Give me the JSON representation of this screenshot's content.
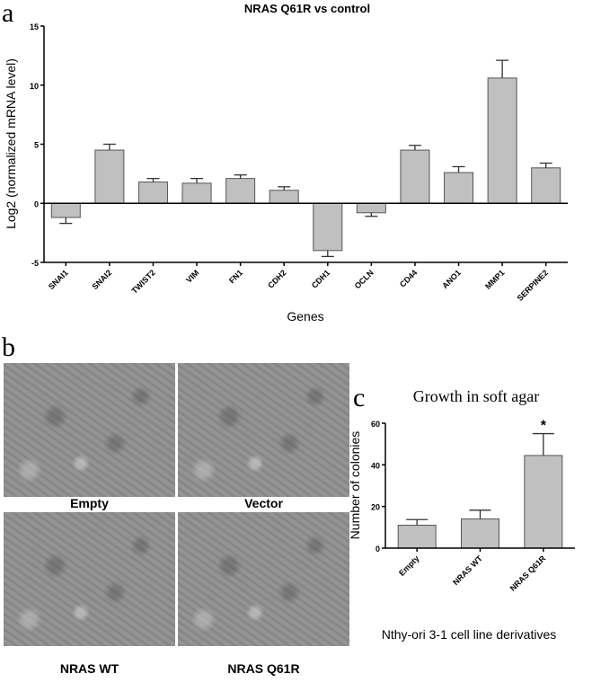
{
  "panels": {
    "a": "a",
    "b": "b",
    "c": "c"
  },
  "chart_data": [
    {
      "type": "bar",
      "title": "NRAS Q61R vs control",
      "xlabel": "Genes",
      "ylabel": "Log2 (normalized mRNA level)",
      "ylim": [
        -5,
        15
      ],
      "yticks": [
        -5,
        0,
        5,
        10,
        15
      ],
      "categories": [
        "SNAI1",
        "SNAI2",
        "TWIST2",
        "VIM",
        "FN1",
        "CDH2",
        "CDH1",
        "OCLN",
        "CD44",
        "ANO1",
        "MMP1",
        "SERPINE2"
      ],
      "values": [
        -1.2,
        4.5,
        1.8,
        1.7,
        2.1,
        1.1,
        -4.0,
        -0.8,
        4.5,
        2.6,
        10.6,
        3.0
      ],
      "errors": [
        0.5,
        0.5,
        0.3,
        0.4,
        0.3,
        0.3,
        0.5,
        0.3,
        0.4,
        0.5,
        1.5,
        0.4
      ],
      "bar_color": "#c0c0c0"
    },
    {
      "type": "bar",
      "title": "Growth in soft agar",
      "xlabel": "Nthy-ori 3-1 cell line derivatives",
      "ylabel": "Number of colonies",
      "ylim": [
        0,
        60
      ],
      "yticks": [
        0,
        20,
        40,
        60
      ],
      "categories": [
        "Empty",
        "NRAS WT",
        "NRAS Q61R"
      ],
      "values": [
        11,
        14,
        44.5
      ],
      "errors": [
        2.7,
        4.2,
        10.5
      ],
      "annotations": [
        "",
        "",
        "*"
      ],
      "bar_color": "#c0c0c0"
    }
  ],
  "micrographs": [
    {
      "label": "Empty"
    },
    {
      "label": "Vector"
    },
    {
      "label": "NRAS WT"
    },
    {
      "label": "NRAS Q61R"
    }
  ]
}
